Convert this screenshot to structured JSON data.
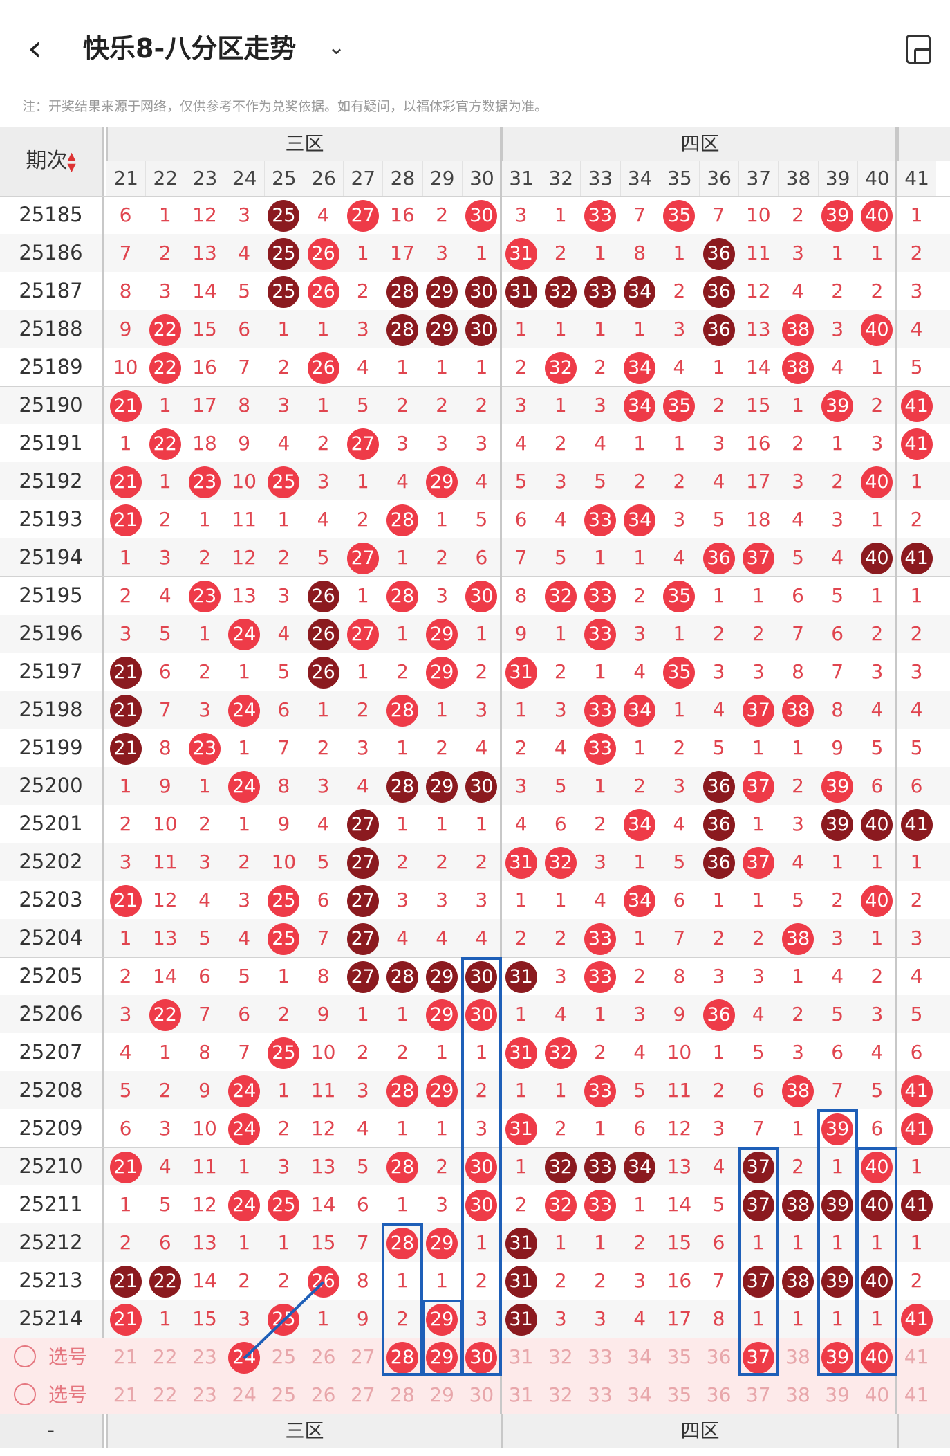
{
  "header": {
    "back": "‹",
    "title": "快乐8-八分区走势",
    "dropdown": "⌄",
    "device_icon": "device-icon"
  },
  "note": "注：开奖结果来源于网络，仅供参考不作为兑奖依据。如有疑问，以福体彩官方数据为准。",
  "table": {
    "period_header": "期次",
    "sort_glyph": "▲▼",
    "zones": [
      "三区",
      "四区"
    ],
    "numbers": [
      "21",
      "22",
      "23",
      "24",
      "25",
      "26",
      "27",
      "28",
      "29",
      "30",
      "31",
      "32",
      "33",
      "34",
      "35",
      "36",
      "37",
      "38",
      "39",
      "40",
      "41"
    ],
    "rows": [
      {
        "p": "25185",
        "c": [
          "6",
          "1",
          "12",
          "3",
          "25",
          "4",
          "27",
          "16",
          "2",
          "30",
          "3",
          "1",
          "33",
          "7",
          "35",
          "7",
          "10",
          "2",
          "39",
          "40",
          "1"
        ],
        "b": {
          "4": "d",
          "6": "h",
          "9": "h",
          "12": "h",
          "14": "h",
          "18": "h",
          "19": "h"
        }
      },
      {
        "p": "25186",
        "c": [
          "7",
          "2",
          "13",
          "4",
          "25",
          "26",
          "1",
          "17",
          "3",
          "1",
          "31",
          "2",
          "1",
          "8",
          "1",
          "36",
          "11",
          "3",
          "1",
          "1",
          "2"
        ],
        "b": {
          "4": "d",
          "5": "h",
          "10": "h",
          "15": "d"
        }
      },
      {
        "p": "25187",
        "c": [
          "8",
          "3",
          "14",
          "5",
          "25",
          "26",
          "2",
          "28",
          "29",
          "30",
          "31",
          "32",
          "33",
          "34",
          "2",
          "36",
          "12",
          "4",
          "2",
          "2",
          "3"
        ],
        "b": {
          "4": "d",
          "5": "h",
          "7": "d",
          "8": "d",
          "9": "d",
          "10": "d",
          "11": "d",
          "12": "d",
          "13": "d",
          "15": "d"
        }
      },
      {
        "p": "25188",
        "c": [
          "9",
          "22",
          "15",
          "6",
          "1",
          "1",
          "3",
          "28",
          "29",
          "30",
          "1",
          "1",
          "1",
          "1",
          "3",
          "36",
          "13",
          "38",
          "3",
          "40",
          "4"
        ],
        "b": {
          "1": "h",
          "7": "d",
          "8": "d",
          "9": "d",
          "15": "d",
          "17": "h",
          "19": "h"
        }
      },
      {
        "p": "25189",
        "c": [
          "10",
          "22",
          "16",
          "7",
          "2",
          "26",
          "4",
          "1",
          "1",
          "1",
          "2",
          "32",
          "2",
          "34",
          "4",
          "1",
          "14",
          "38",
          "4",
          "1",
          "5"
        ],
        "b": {
          "1": "h",
          "5": "h",
          "11": "h",
          "13": "h",
          "17": "h"
        }
      },
      {
        "p": "25190",
        "c": [
          "21",
          "1",
          "17",
          "8",
          "3",
          "1",
          "5",
          "2",
          "2",
          "2",
          "3",
          "1",
          "3",
          "34",
          "35",
          "2",
          "15",
          "1",
          "39",
          "2",
          "41"
        ],
        "b": {
          "0": "h",
          "13": "h",
          "14": "h",
          "18": "h",
          "20": "h"
        }
      },
      {
        "p": "25191",
        "c": [
          "1",
          "22",
          "18",
          "9",
          "4",
          "2",
          "27",
          "3",
          "3",
          "3",
          "4",
          "2",
          "4",
          "1",
          "1",
          "3",
          "16",
          "2",
          "1",
          "3",
          "41"
        ],
        "b": {
          "1": "h",
          "6": "h",
          "20": "h"
        }
      },
      {
        "p": "25192",
        "c": [
          "21",
          "1",
          "23",
          "10",
          "25",
          "3",
          "1",
          "4",
          "29",
          "4",
          "5",
          "3",
          "5",
          "2",
          "2",
          "4",
          "17",
          "3",
          "2",
          "40",
          "1"
        ],
        "b": {
          "0": "h",
          "2": "h",
          "4": "h",
          "8": "h",
          "19": "h"
        }
      },
      {
        "p": "25193",
        "c": [
          "21",
          "2",
          "1",
          "11",
          "1",
          "4",
          "2",
          "28",
          "1",
          "5",
          "6",
          "4",
          "33",
          "34",
          "3",
          "5",
          "18",
          "4",
          "3",
          "1",
          "2"
        ],
        "b": {
          "0": "h",
          "7": "h",
          "12": "h",
          "13": "h"
        }
      },
      {
        "p": "25194",
        "c": [
          "1",
          "3",
          "2",
          "12",
          "2",
          "5",
          "27",
          "1",
          "2",
          "6",
          "7",
          "5",
          "1",
          "1",
          "4",
          "36",
          "37",
          "5",
          "4",
          "40",
          "41"
        ],
        "b": {
          "6": "h",
          "15": "h",
          "16": "h",
          "19": "d",
          "20": "d"
        }
      },
      {
        "p": "25195",
        "c": [
          "2",
          "4",
          "23",
          "13",
          "3",
          "26",
          "1",
          "28",
          "3",
          "30",
          "8",
          "32",
          "33",
          "2",
          "35",
          "1",
          "1",
          "6",
          "5",
          "1",
          "1"
        ],
        "b": {
          "2": "h",
          "5": "d",
          "7": "h",
          "9": "h",
          "11": "h",
          "12": "h",
          "14": "h"
        }
      },
      {
        "p": "25196",
        "c": [
          "3",
          "5",
          "1",
          "24",
          "4",
          "26",
          "27",
          "1",
          "29",
          "1",
          "9",
          "1",
          "33",
          "3",
          "1",
          "2",
          "2",
          "7",
          "6",
          "2",
          "2"
        ],
        "b": {
          "3": "h",
          "5": "d",
          "6": "h",
          "8": "h",
          "12": "h"
        }
      },
      {
        "p": "25197",
        "c": [
          "21",
          "6",
          "2",
          "1",
          "5",
          "26",
          "1",
          "2",
          "29",
          "2",
          "31",
          "2",
          "1",
          "4",
          "35",
          "3",
          "3",
          "8",
          "7",
          "3",
          "3"
        ],
        "b": {
          "0": "d",
          "5": "d",
          "8": "h",
          "10": "h",
          "14": "h"
        }
      },
      {
        "p": "25198",
        "c": [
          "21",
          "7",
          "3",
          "24",
          "6",
          "1",
          "2",
          "28",
          "1",
          "3",
          "1",
          "3",
          "33",
          "34",
          "1",
          "4",
          "37",
          "38",
          "8",
          "4",
          "4"
        ],
        "b": {
          "0": "d",
          "3": "h",
          "7": "h",
          "12": "h",
          "13": "h",
          "16": "h",
          "17": "h"
        }
      },
      {
        "p": "25199",
        "c": [
          "21",
          "8",
          "23",
          "1",
          "7",
          "2",
          "3",
          "1",
          "2",
          "4",
          "2",
          "4",
          "33",
          "1",
          "2",
          "5",
          "1",
          "1",
          "9",
          "5",
          "5"
        ],
        "b": {
          "0": "d",
          "2": "h",
          "12": "h"
        }
      },
      {
        "p": "25200",
        "c": [
          "1",
          "9",
          "1",
          "24",
          "8",
          "3",
          "4",
          "28",
          "29",
          "30",
          "3",
          "5",
          "1",
          "2",
          "3",
          "36",
          "37",
          "2",
          "39",
          "6",
          "6"
        ],
        "b": {
          "3": "h",
          "7": "d",
          "8": "d",
          "9": "d",
          "15": "d",
          "16": "h",
          "18": "h"
        }
      },
      {
        "p": "25201",
        "c": [
          "2",
          "10",
          "2",
          "1",
          "9",
          "4",
          "27",
          "1",
          "1",
          "1",
          "4",
          "6",
          "2",
          "34",
          "4",
          "36",
          "1",
          "3",
          "39",
          "40",
          "41"
        ],
        "b": {
          "6": "d",
          "13": "h",
          "15": "d",
          "18": "d",
          "19": "d",
          "20": "d"
        }
      },
      {
        "p": "25202",
        "c": [
          "3",
          "11",
          "3",
          "2",
          "10",
          "5",
          "27",
          "2",
          "2",
          "2",
          "31",
          "32",
          "3",
          "1",
          "5",
          "36",
          "37",
          "4",
          "1",
          "1",
          "1"
        ],
        "b": {
          "6": "d",
          "10": "h",
          "11": "h",
          "15": "d",
          "16": "h"
        }
      },
      {
        "p": "25203",
        "c": [
          "21",
          "12",
          "4",
          "3",
          "25",
          "6",
          "27",
          "3",
          "3",
          "3",
          "1",
          "1",
          "4",
          "34",
          "6",
          "1",
          "1",
          "5",
          "2",
          "40",
          "2"
        ],
        "b": {
          "0": "h",
          "4": "h",
          "6": "d",
          "13": "h",
          "19": "h"
        }
      },
      {
        "p": "25204",
        "c": [
          "1",
          "13",
          "5",
          "4",
          "25",
          "7",
          "27",
          "4",
          "4",
          "4",
          "2",
          "2",
          "33",
          "1",
          "7",
          "2",
          "2",
          "38",
          "3",
          "1",
          "3"
        ],
        "b": {
          "4": "h",
          "6": "d",
          "12": "h",
          "17": "h"
        }
      },
      {
        "p": "25205",
        "c": [
          "2",
          "14",
          "6",
          "5",
          "1",
          "8",
          "27",
          "28",
          "29",
          "30",
          "31",
          "3",
          "33",
          "2",
          "8",
          "3",
          "3",
          "1",
          "4",
          "2",
          "4"
        ],
        "b": {
          "6": "d",
          "7": "d",
          "8": "d",
          "9": "d",
          "10": "d",
          "12": "h"
        }
      },
      {
        "p": "25206",
        "c": [
          "3",
          "22",
          "7",
          "6",
          "2",
          "9",
          "1",
          "1",
          "29",
          "30",
          "1",
          "4",
          "1",
          "3",
          "9",
          "36",
          "4",
          "2",
          "5",
          "3",
          "5"
        ],
        "b": {
          "1": "h",
          "8": "h",
          "9": "h",
          "15": "h"
        }
      },
      {
        "p": "25207",
        "c": [
          "4",
          "1",
          "8",
          "7",
          "25",
          "10",
          "2",
          "2",
          "1",
          "1",
          "31",
          "32",
          "2",
          "4",
          "10",
          "1",
          "5",
          "3",
          "6",
          "4",
          "6"
        ],
        "b": {
          "4": "h",
          "10": "h",
          "11": "h"
        }
      },
      {
        "p": "25208",
        "c": [
          "5",
          "2",
          "9",
          "24",
          "1",
          "11",
          "3",
          "28",
          "29",
          "2",
          "1",
          "1",
          "33",
          "5",
          "11",
          "2",
          "6",
          "38",
          "7",
          "5",
          "41"
        ],
        "b": {
          "3": "h",
          "7": "h",
          "8": "h",
          "12": "h",
          "17": "h",
          "20": "h"
        }
      },
      {
        "p": "25209",
        "c": [
          "6",
          "3",
          "10",
          "24",
          "2",
          "12",
          "4",
          "1",
          "1",
          "3",
          "31",
          "2",
          "1",
          "6",
          "12",
          "3",
          "7",
          "1",
          "39",
          "6",
          "41"
        ],
        "b": {
          "3": "h",
          "10": "h",
          "18": "h",
          "20": "h"
        }
      },
      {
        "p": "25210",
        "c": [
          "21",
          "4",
          "11",
          "1",
          "3",
          "13",
          "5",
          "28",
          "2",
          "30",
          "1",
          "32",
          "33",
          "34",
          "13",
          "4",
          "37",
          "2",
          "1",
          "40",
          "1"
        ],
        "b": {
          "0": "h",
          "7": "h",
          "9": "h",
          "11": "d",
          "12": "d",
          "13": "d",
          "16": "d",
          "19": "h"
        }
      },
      {
        "p": "25211",
        "c": [
          "1",
          "5",
          "12",
          "24",
          "25",
          "14",
          "6",
          "1",
          "3",
          "30",
          "2",
          "32",
          "33",
          "1",
          "14",
          "5",
          "37",
          "38",
          "39",
          "40",
          "41"
        ],
        "b": {
          "3": "h",
          "4": "h",
          "9": "h",
          "11": "h",
          "12": "h",
          "16": "d",
          "17": "d",
          "18": "d",
          "19": "d",
          "20": "d"
        }
      },
      {
        "p": "25212",
        "c": [
          "2",
          "6",
          "13",
          "1",
          "1",
          "15",
          "7",
          "28",
          "29",
          "1",
          "31",
          "1",
          "1",
          "2",
          "15",
          "6",
          "1",
          "1",
          "1",
          "1",
          "1"
        ],
        "b": {
          "7": "h",
          "8": "h",
          "10": "d"
        }
      },
      {
        "p": "25213",
        "c": [
          "21",
          "22",
          "14",
          "2",
          "2",
          "26",
          "8",
          "1",
          "1",
          "2",
          "31",
          "2",
          "2",
          "3",
          "16",
          "7",
          "37",
          "38",
          "39",
          "40",
          "2"
        ],
        "b": {
          "0": "d",
          "1": "d",
          "5": "h",
          "10": "d",
          "16": "d",
          "17": "d",
          "18": "d",
          "19": "d"
        }
      },
      {
        "p": "25214",
        "c": [
          "21",
          "1",
          "15",
          "3",
          "25",
          "1",
          "9",
          "2",
          "29",
          "3",
          "31",
          "3",
          "3",
          "4",
          "17",
          "8",
          "1",
          "1",
          "1",
          "1",
          "41"
        ],
        "b": {
          "0": "h",
          "4": "h",
          "8": "h",
          "10": "d",
          "20": "h"
        }
      }
    ],
    "pick_rows": [
      {
        "label": "选号",
        "c": [
          "21",
          "22",
          "23",
          "24",
          "25",
          "26",
          "27",
          "28",
          "29",
          "30",
          "31",
          "32",
          "33",
          "34",
          "35",
          "36",
          "37",
          "38",
          "39",
          "40",
          "41"
        ],
        "b": {
          "3": "h",
          "7": "h",
          "8": "h",
          "9": "h",
          "16": "h",
          "18": "h",
          "19": "h"
        }
      },
      {
        "label": "选号",
        "c": [
          "21",
          "22",
          "23",
          "24",
          "25",
          "26",
          "27",
          "28",
          "29",
          "30",
          "31",
          "32",
          "33",
          "34",
          "35",
          "36",
          "37",
          "38",
          "39",
          "40",
          "41"
        ],
        "b": {}
      }
    ],
    "colors": {
      "hot": "#ee3b48",
      "dark": "#8b1a1f",
      "miss": "#e0454f",
      "selection": "#1e5fb8"
    },
    "footer_minus": "-"
  }
}
